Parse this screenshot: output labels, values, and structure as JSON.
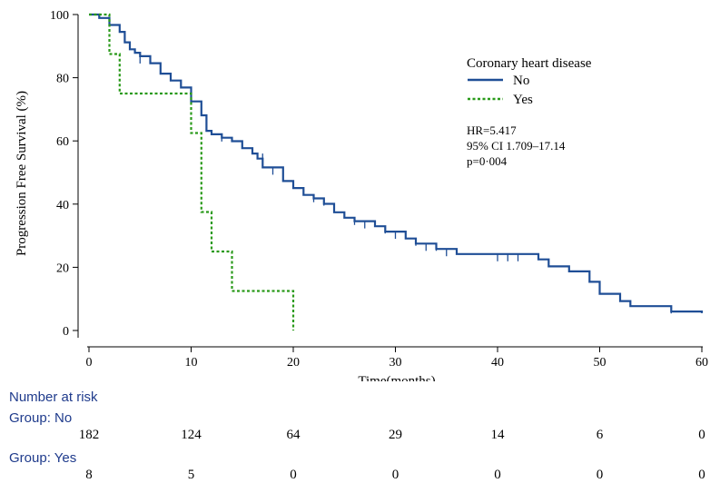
{
  "chart_data": {
    "type": "line",
    "subtype": "kaplan-meier",
    "title": "",
    "xlabel": "Time(months)",
    "ylabel": "Progression Free Survival (%)",
    "xlim": [
      0,
      60
    ],
    "ylim": [
      0,
      100
    ],
    "x_ticks": [
      "0",
      "10",
      "20",
      "30",
      "40",
      "50",
      "60"
    ],
    "y_ticks": [
      "0",
      "20",
      "40",
      "60",
      "80",
      "100"
    ],
    "legend_title": "Coronary heart disease",
    "series": [
      {
        "name": "No",
        "color": "#1f4e96",
        "style": "solid",
        "steps": [
          [
            0,
            100
          ],
          [
            1,
            98.9
          ],
          [
            2,
            96.7
          ],
          [
            3,
            94.5
          ],
          [
            3.5,
            91.2
          ],
          [
            4,
            89
          ],
          [
            4.5,
            87.9
          ],
          [
            5,
            86.8
          ],
          [
            6,
            84.6
          ],
          [
            7,
            81.3
          ],
          [
            8,
            79.1
          ],
          [
            9,
            76.9
          ],
          [
            10,
            72.5
          ],
          [
            11,
            68.1
          ],
          [
            11.5,
            63.2
          ],
          [
            12,
            62.1
          ],
          [
            13,
            61
          ],
          [
            14,
            59.9
          ],
          [
            15,
            57.7
          ],
          [
            16,
            56
          ],
          [
            16.5,
            54.4
          ],
          [
            17,
            51.6
          ],
          [
            19,
            47.3
          ],
          [
            20,
            45.1
          ],
          [
            21,
            42.9
          ],
          [
            22,
            41.8
          ],
          [
            23,
            40.1
          ],
          [
            24,
            37.4
          ],
          [
            25,
            35.7
          ],
          [
            26,
            34.6
          ],
          [
            28,
            33
          ],
          [
            29,
            31.3
          ],
          [
            31,
            29.1
          ],
          [
            32,
            27.5
          ],
          [
            34,
            25.8
          ],
          [
            36,
            24.2
          ],
          [
            44,
            22.5
          ],
          [
            45,
            20.3
          ],
          [
            47,
            18.7
          ],
          [
            49,
            15.4
          ],
          [
            50,
            11.6
          ],
          [
            52,
            9.3
          ],
          [
            53,
            7.7
          ],
          [
            57,
            6
          ],
          [
            60,
            5.5
          ]
        ],
        "censored": [
          [
            5,
            86.8
          ],
          [
            13,
            62.1
          ],
          [
            15,
            59.9
          ],
          [
            17,
            56
          ],
          [
            18,
            51.6
          ],
          [
            19,
            51.6
          ],
          [
            22,
            42.9
          ],
          [
            23,
            41.8
          ],
          [
            24,
            40.1
          ],
          [
            26,
            35.7
          ],
          [
            27,
            34.6
          ],
          [
            29,
            33
          ],
          [
            30,
            31.3
          ],
          [
            32,
            29.1
          ],
          [
            33,
            27.5
          ],
          [
            34,
            27.5
          ],
          [
            35,
            25.8
          ],
          [
            40,
            24.2
          ],
          [
            41,
            24.2
          ],
          [
            42,
            24.2
          ],
          [
            57,
            7.7
          ]
        ]
      },
      {
        "name": "Yes",
        "color": "#2a9a1a",
        "style": "dashed",
        "steps": [
          [
            0,
            100
          ],
          [
            2,
            87.5
          ],
          [
            3,
            75
          ],
          [
            10,
            62.5
          ],
          [
            11,
            37.5
          ],
          [
            12,
            25
          ],
          [
            14,
            12.5
          ],
          [
            20,
            0
          ]
        ],
        "censored": []
      }
    ],
    "annotations": [
      "HR=5.417",
      "95% CI 1.709–17.14",
      "p=0·004"
    ]
  },
  "risk_table": {
    "title": "Number at risk",
    "groups": [
      {
        "label": "Group: No",
        "counts": [
          "182",
          "124",
          "64",
          "29",
          "14",
          "6",
          "0"
        ]
      },
      {
        "label": "Group: Yes",
        "counts": [
          "8",
          "5",
          "0",
          "0",
          "0",
          "0",
          "0"
        ]
      }
    ]
  }
}
